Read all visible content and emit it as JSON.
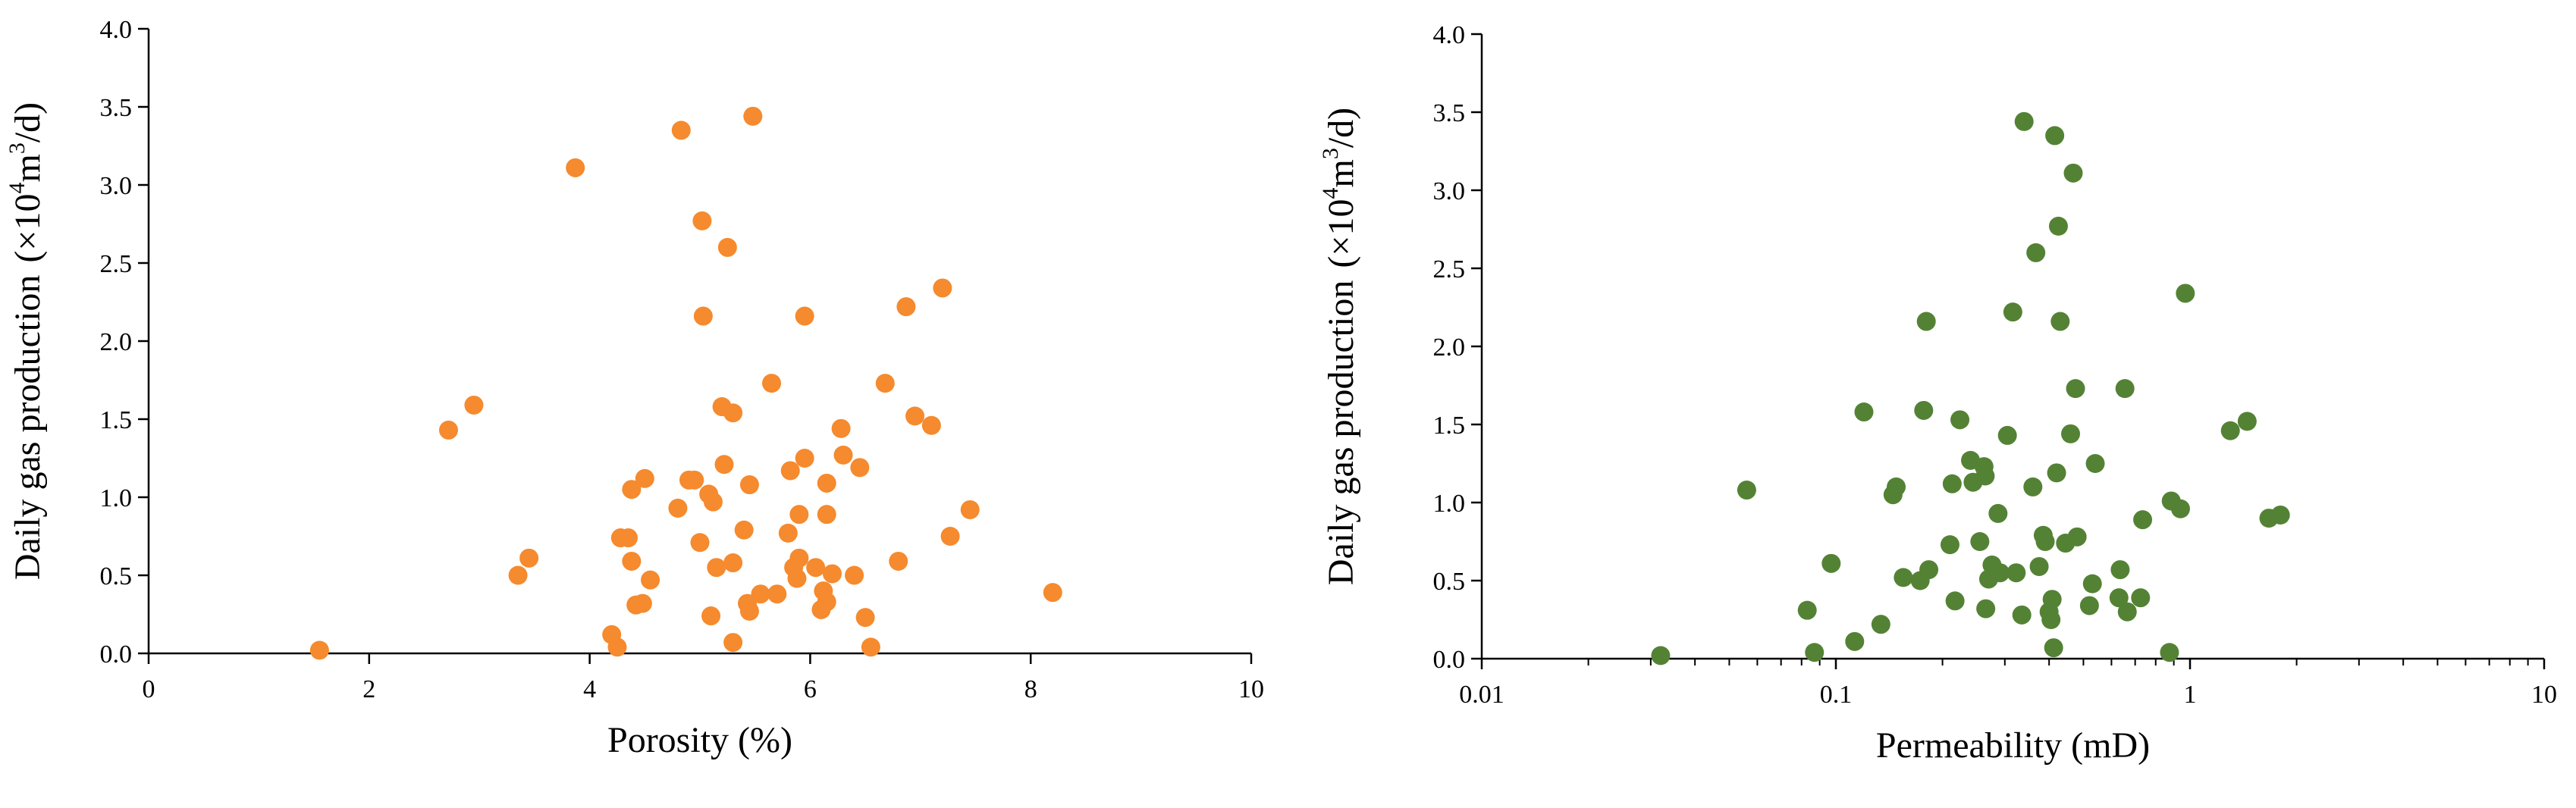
{
  "colors": {
    "porosity_marker": "#f58a2e",
    "permeability_marker": "#548235",
    "axis": "#000000",
    "background": "#ffffff"
  },
  "chart_data": [
    {
      "type": "scatter",
      "xlabel": "Porosity (%)",
      "ylabel_prefix": "Daily gas production",
      "ylabel_unit_open": "(×10",
      "ylabel_unit_sup": "4",
      "ylabel_unit_mid": "m",
      "ylabel_unit_sup2": "3",
      "ylabel_unit_close": "/d)",
      "xlim": [
        0,
        10
      ],
      "ylim": [
        0,
        4.0
      ],
      "x_scale": "linear",
      "x_ticks": [
        0,
        2,
        4,
        6,
        8,
        10
      ],
      "x_tick_labels": [
        "0",
        "2",
        "4",
        "6",
        "8",
        "10"
      ],
      "y_ticks": [
        0,
        0.5,
        1.0,
        1.5,
        2.0,
        2.5,
        3.0,
        3.5,
        4.0
      ],
      "y_tick_labels": [
        "0.0",
        "0.5",
        "1.0",
        "1.5",
        "2.0",
        "2.5",
        "3.0",
        "3.5",
        "4.0"
      ],
      "grid": false,
      "marker_color": "#f58a2e",
      "points": [
        [
          1.55,
          0.02
        ],
        [
          2.72,
          1.43
        ],
        [
          2.95,
          1.59
        ],
        [
          3.35,
          0.5
        ],
        [
          3.45,
          0.61
        ],
        [
          3.87,
          3.11
        ],
        [
          4.2,
          0.12
        ],
        [
          4.25,
          0.04
        ],
        [
          4.28,
          0.74
        ],
        [
          4.35,
          0.74
        ],
        [
          4.38,
          0.59
        ],
        [
          4.38,
          1.05
        ],
        [
          4.42,
          0.31
        ],
        [
          4.48,
          0.32
        ],
        [
          4.5,
          1.12
        ],
        [
          4.55,
          0.47
        ],
        [
          4.8,
          0.93
        ],
        [
          4.83,
          3.35
        ],
        [
          4.9,
          1.11
        ],
        [
          4.95,
          1.11
        ],
        [
          5.0,
          0.71
        ],
        [
          5.02,
          2.77
        ],
        [
          5.03,
          2.16
        ],
        [
          5.08,
          1.02
        ],
        [
          5.1,
          0.24
        ],
        [
          5.12,
          0.97
        ],
        [
          5.15,
          0.55
        ],
        [
          5.2,
          1.58
        ],
        [
          5.22,
          1.21
        ],
        [
          5.25,
          2.6
        ],
        [
          5.3,
          1.54
        ],
        [
          5.3,
          0.07
        ],
        [
          5.3,
          0.58
        ],
        [
          5.4,
          0.79
        ],
        [
          5.43,
          0.32
        ],
        [
          5.45,
          0.27
        ],
        [
          5.45,
          1.08
        ],
        [
          5.48,
          3.44
        ],
        [
          5.55,
          0.38
        ],
        [
          5.65,
          1.73
        ],
        [
          5.7,
          0.38
        ],
        [
          5.8,
          0.77
        ],
        [
          5.82,
          1.17
        ],
        [
          5.85,
          0.55
        ],
        [
          5.88,
          0.48
        ],
        [
          5.9,
          0.89
        ],
        [
          5.9,
          0.61
        ],
        [
          5.95,
          1.25
        ],
        [
          5.95,
          2.16
        ],
        [
          6.05,
          0.55
        ],
        [
          6.1,
          0.28
        ],
        [
          6.12,
          0.4
        ],
        [
          6.15,
          0.89
        ],
        [
          6.15,
          0.33
        ],
        [
          6.15,
          1.09
        ],
        [
          6.2,
          0.51
        ],
        [
          6.28,
          1.44
        ],
        [
          6.3,
          1.27
        ],
        [
          6.4,
          0.5
        ],
        [
          6.45,
          1.19
        ],
        [
          6.5,
          0.23
        ],
        [
          6.55,
          0.04
        ],
        [
          6.68,
          1.73
        ],
        [
          6.8,
          0.59
        ],
        [
          6.87,
          2.22
        ],
        [
          6.95,
          1.52
        ],
        [
          7.1,
          1.46
        ],
        [
          7.2,
          2.34
        ],
        [
          7.27,
          0.75
        ],
        [
          7.45,
          0.92
        ],
        [
          8.2,
          0.39
        ]
      ]
    },
    {
      "type": "scatter",
      "xlabel": "Permeability (mD)",
      "ylabel_prefix": "Daily gas production",
      "ylabel_unit_open": "(×10",
      "ylabel_unit_sup": "4",
      "ylabel_unit_mid": "m",
      "ylabel_unit_sup2": "3",
      "ylabel_unit_close": "/d)",
      "xlim": [
        0.01,
        10
      ],
      "ylim": [
        0,
        4.0
      ],
      "x_scale": "log",
      "x_ticks": [
        0.01,
        0.1,
        1,
        10
      ],
      "x_tick_labels": [
        "0.01",
        "0.1",
        "1",
        "10"
      ],
      "y_ticks": [
        0,
        0.5,
        1.0,
        1.5,
        2.0,
        2.5,
        3.0,
        3.5,
        4.0
      ],
      "y_tick_labels": [
        "0.0",
        "0.5",
        "1.0",
        "1.5",
        "2.0",
        "2.5",
        "3.0",
        "3.5",
        "4.0"
      ],
      "grid": false,
      "marker_color": "#548235",
      "points": [
        [
          0.032,
          0.02
        ],
        [
          0.056,
          1.08
        ],
        [
          0.083,
          0.31
        ],
        [
          0.087,
          0.04
        ],
        [
          0.097,
          0.61
        ],
        [
          0.113,
          0.11
        ],
        [
          0.12,
          1.58
        ],
        [
          0.134,
          0.22
        ],
        [
          0.145,
          1.05
        ],
        [
          0.148,
          1.1
        ],
        [
          0.155,
          0.52
        ],
        [
          0.173,
          0.5
        ],
        [
          0.177,
          1.59
        ],
        [
          0.18,
          2.16
        ],
        [
          0.183,
          0.57
        ],
        [
          0.21,
          0.73
        ],
        [
          0.213,
          1.12
        ],
        [
          0.217,
          0.37
        ],
        [
          0.224,
          1.53
        ],
        [
          0.24,
          1.27
        ],
        [
          0.244,
          1.13
        ],
        [
          0.255,
          0.75
        ],
        [
          0.262,
          1.23
        ],
        [
          0.264,
          1.17
        ],
        [
          0.265,
          0.32
        ],
        [
          0.27,
          0.51
        ],
        [
          0.276,
          0.6
        ],
        [
          0.287,
          0.93
        ],
        [
          0.291,
          0.55
        ],
        [
          0.305,
          1.43
        ],
        [
          0.316,
          2.22
        ],
        [
          0.323,
          0.55
        ],
        [
          0.335,
          0.28
        ],
        [
          0.34,
          3.44
        ],
        [
          0.36,
          1.1
        ],
        [
          0.367,
          2.6
        ],
        [
          0.375,
          0.59
        ],
        [
          0.385,
          0.79
        ],
        [
          0.39,
          0.75
        ],
        [
          0.4,
          0.3
        ],
        [
          0.405,
          0.25
        ],
        [
          0.408,
          0.38
        ],
        [
          0.412,
          0.07
        ],
        [
          0.415,
          3.35
        ],
        [
          0.42,
          1.19
        ],
        [
          0.425,
          2.77
        ],
        [
          0.43,
          2.16
        ],
        [
          0.445,
          0.74
        ],
        [
          0.46,
          1.44
        ],
        [
          0.468,
          3.11
        ],
        [
          0.475,
          1.73
        ],
        [
          0.48,
          0.78
        ],
        [
          0.52,
          0.34
        ],
        [
          0.53,
          0.48
        ],
        [
          0.54,
          1.25
        ],
        [
          0.63,
          0.39
        ],
        [
          0.635,
          0.57
        ],
        [
          0.655,
          1.73
        ],
        [
          0.665,
          0.3
        ],
        [
          0.725,
          0.39
        ],
        [
          0.735,
          0.89
        ],
        [
          0.875,
          0.04
        ],
        [
          0.885,
          1.01
        ],
        [
          0.94,
          0.96
        ],
        [
          0.97,
          2.34
        ],
        [
          1.3,
          1.46
        ],
        [
          1.45,
          1.52
        ],
        [
          1.67,
          0.9
        ],
        [
          1.8,
          0.92
        ]
      ]
    }
  ]
}
